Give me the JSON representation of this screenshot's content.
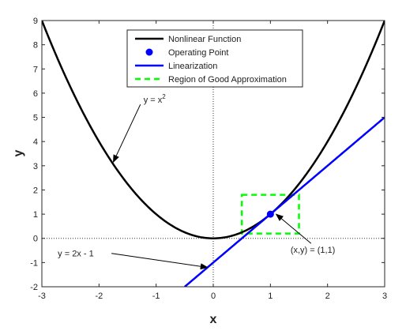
{
  "chart_data": {
    "type": "line",
    "xlabel": "x",
    "ylabel": "y",
    "xlim": [
      -3,
      3
    ],
    "ylim": [
      -2,
      9
    ],
    "xticks": [
      -3,
      -2,
      -1,
      0,
      1,
      2,
      3
    ],
    "yticks": [
      -2,
      -1,
      0,
      1,
      2,
      3,
      4,
      5,
      6,
      7,
      8,
      9
    ],
    "grid": false,
    "legend_position": "top-center",
    "reference_lines": {
      "x": 0,
      "y": 0,
      "style": "dotted"
    },
    "series": [
      {
        "name": "Nonlinear Function",
        "kind": "line",
        "function": "x^2",
        "domain": [
          -3,
          3
        ],
        "color": "#000000"
      },
      {
        "name": "Operating Point",
        "kind": "point",
        "x": 1,
        "y": 1,
        "color": "#0000ff"
      },
      {
        "name": "Linearization",
        "kind": "line",
        "function": "2x - 1",
        "domain": [
          -0.5,
          3
        ],
        "color": "#0000ff"
      },
      {
        "name": "Region of Good Approximation",
        "kind": "rectangle",
        "x_range": [
          0.5,
          1.5
        ],
        "y_range": [
          0.2,
          1.8
        ],
        "color": "#00ff00",
        "dashed": true
      }
    ],
    "annotations": [
      {
        "text_base": "y = x",
        "text_sup": "2",
        "label_at": [
          -0.75,
          5.6
        ],
        "arrow_to": [
          -1.75,
          3.15
        ]
      },
      {
        "text": "y = 2x - 1",
        "label_at": [
          -2.5,
          -0.75
        ],
        "arrow_to": [
          -0.1,
          -1.2
        ]
      },
      {
        "text": "(x,y) = (1,1)",
        "label_at": [
          1.85,
          -0.6
        ],
        "arrow_to": [
          1.1,
          1.0
        ]
      }
    ]
  }
}
